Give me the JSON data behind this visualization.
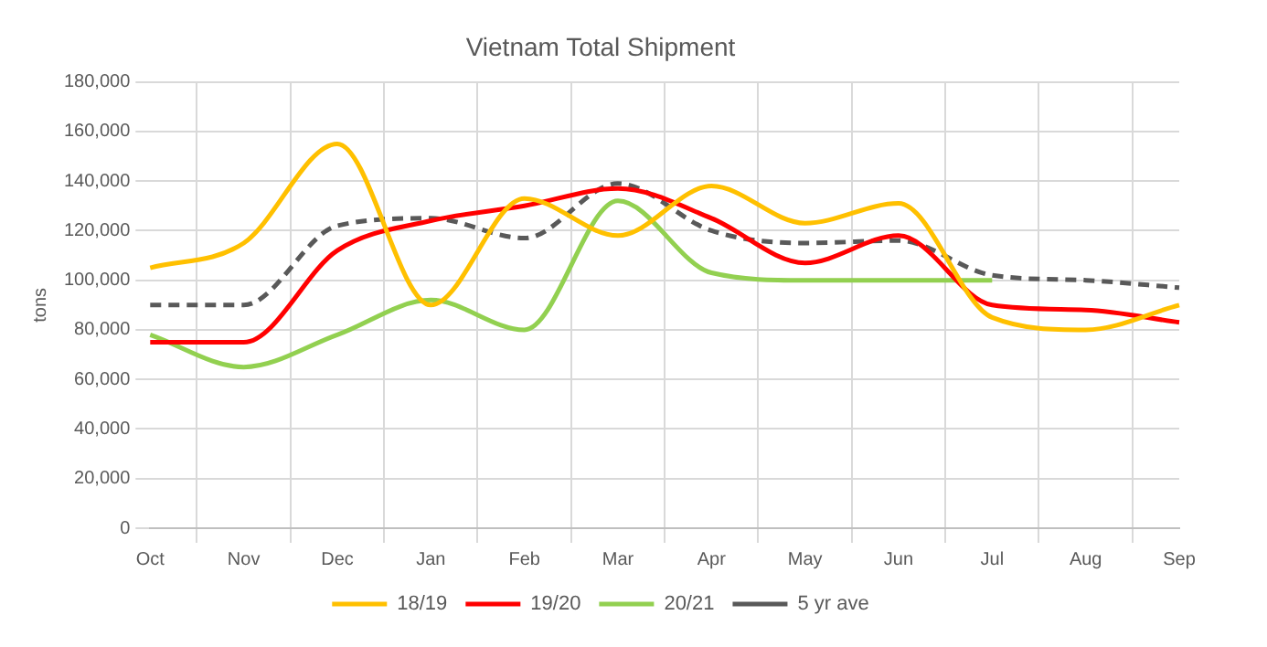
{
  "chart_data": {
    "type": "line",
    "title": "Vietnam Total Shipment",
    "ylabel": "tons",
    "categories": [
      "Oct",
      "Nov",
      "Dec",
      "Jan",
      "Feb",
      "Mar",
      "Apr",
      "May",
      "Jun",
      "Jul",
      "Aug",
      "Sep"
    ],
    "series": [
      {
        "name": "18/19",
        "color": "#ffc000",
        "values": [
          105000,
          115000,
          155000,
          90000,
          133000,
          118000,
          138000,
          123000,
          131000,
          85000,
          80000,
          90000
        ]
      },
      {
        "name": "19/20",
        "color": "#ff0000",
        "values": [
          75000,
          75000,
          112000,
          124000,
          130000,
          137000,
          125000,
          107000,
          118000,
          90000,
          88000,
          83000
        ]
      },
      {
        "name": "20/21",
        "color": "#92d050",
        "values": [
          78000,
          65000,
          78000,
          92000,
          80000,
          132000,
          103000,
          100000,
          100000,
          100000,
          null,
          null
        ]
      },
      {
        "name": "5 yr ave",
        "color": "#595959",
        "line_style": "dashed",
        "values": [
          90000,
          90000,
          122000,
          125000,
          117000,
          139000,
          120000,
          115000,
          116000,
          102000,
          100000,
          97000
        ]
      }
    ],
    "ylim": [
      0,
      180000
    ],
    "yticks": [
      0,
      {
        "value": 20000,
        "label": "20,000"
      },
      {
        "value": 40000,
        "label": "40,000"
      },
      {
        "value": 60000,
        "label": "60,000"
      },
      {
        "value": 80000,
        "label": "80,000"
      },
      {
        "value": 100000,
        "label": "100,000"
      },
      {
        "value": 120000,
        "label": "120,000"
      },
      {
        "value": 140000,
        "label": "140,000"
      },
      {
        "value": 160000,
        "label": "160,000"
      },
      {
        "value": 180000,
        "label": "180,000"
      }
    ],
    "grid": true,
    "legend": "bottom",
    "marker": "none",
    "line_style": "solid"
  }
}
